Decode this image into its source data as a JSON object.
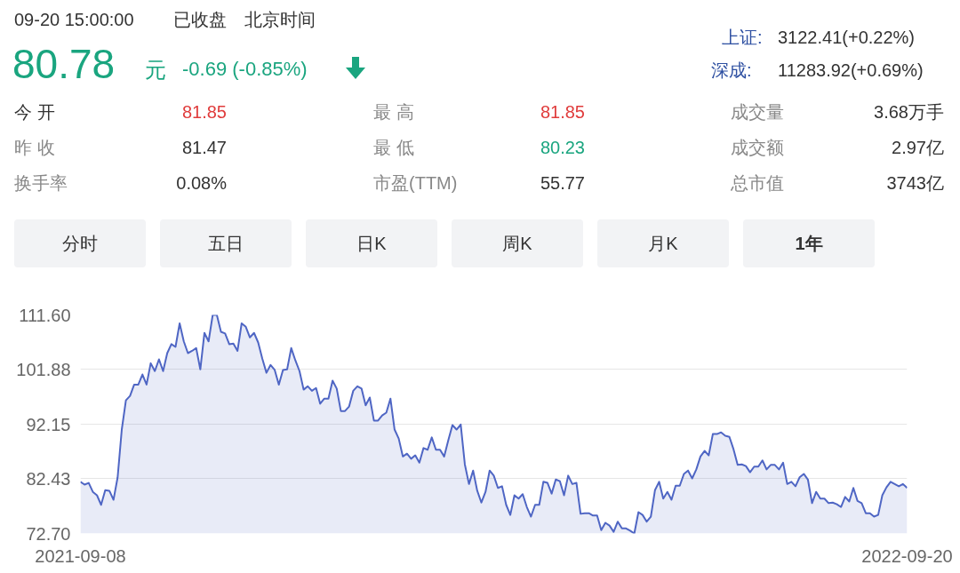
{
  "chart_data": {
    "type": "area",
    "annotations": [
      "09-20 15:00:00",
      "已收盘",
      "北京时间",
      "80.78",
      "元",
      "-0.69 (-0.85%)",
      "上证:",
      "3122.41(+0.22%)",
      "深成:",
      "11283.92(+0.69%)",
      "今 开",
      "81.85",
      "最 高",
      "81.85",
      "成交量",
      "3.68万手",
      "昨 收",
      "81.47",
      "最 低",
      "80.23",
      "成交额",
      "2.97亿",
      "换手率",
      "0.08%",
      "市盈(TTM)",
      "55.77",
      "总市值",
      "3743亿",
      "分时",
      "五日",
      "日K",
      "周K",
      "月K",
      "1年"
    ],
    "series": [
      {
        "color": "#4f66c4",
        "values": [
          81.9,
          81.4,
          81.7,
          80.1,
          79.5,
          77.8,
          80.4,
          80.3,
          78.7,
          82.7,
          91.2,
          96.4,
          97.2,
          99.2,
          99.2,
          101.0,
          99.2,
          103.0,
          101.6,
          103.7,
          101.6,
          104.8,
          106.4,
          105.9,
          110.1,
          106.9,
          104.8,
          105.2,
          105.7,
          101.9,
          108.4,
          106.9,
          111.6,
          111.6,
          108.6,
          108.3,
          106.4,
          106.5,
          105.2,
          110.1,
          109.5,
          107.6,
          108.4,
          106.7,
          103.8,
          101.3,
          102.7,
          101.8,
          99.2,
          101.8,
          101.9,
          105.7,
          103.5,
          101.6,
          98.3,
          98.9,
          98.1,
          98.6,
          95.8,
          96.7,
          96.7,
          99.9,
          98.5,
          94.5,
          94.5,
          95.3,
          98.1,
          98.9,
          98.5,
          95.5,
          96.9,
          92.8,
          92.8,
          93.7,
          94.2,
          96.7,
          91.2,
          89.6,
          86.4,
          86.9,
          86.0,
          86.6,
          85.3,
          87.9,
          87.6,
          89.8,
          87.6,
          87.6,
          86.4,
          89.3,
          92.0,
          91.2,
          92.1,
          85.0,
          81.5,
          83.9,
          80.3,
          78.2,
          80.1,
          83.9,
          83.0,
          80.8,
          81.1,
          77.8,
          76.0,
          79.5,
          78.9,
          79.7,
          77.4,
          75.7,
          77.8,
          77.8,
          81.9,
          81.7,
          79.8,
          82.3,
          82.0,
          79.5,
          83.0,
          81.5,
          81.7,
          76.2,
          76.3,
          76.3,
          75.9,
          75.9,
          73.3,
          74.6,
          74.1,
          73.0,
          74.8,
          73.6,
          73.6,
          73.2,
          72.7,
          76.5,
          76.0,
          74.8,
          75.7,
          80.4,
          81.9,
          78.9,
          80.1,
          78.7,
          81.2,
          81.2,
          83.3,
          83.9,
          82.5,
          84.1,
          86.4,
          87.4,
          86.6,
          90.4,
          90.4,
          90.7,
          90.1,
          89.9,
          87.7,
          84.9,
          85.0,
          84.7,
          83.6,
          84.6,
          84.6,
          85.7,
          84.1,
          84.9,
          84.9,
          84.1,
          85.3,
          81.5,
          81.9,
          81.1,
          82.7,
          83.3,
          82.3,
          78.1,
          80.1,
          78.9,
          78.9,
          78.1,
          78.2,
          77.9,
          77.4,
          79.2,
          78.4,
          80.8,
          78.5,
          78.1,
          76.3,
          76.3,
          75.7,
          76.0,
          79.5,
          80.9,
          81.9,
          81.5,
          81.1,
          81.5,
          80.8
        ]
      }
    ],
    "categories": [
      "2021-09-08",
      null,
      null,
      null,
      null,
      null,
      null,
      null,
      null,
      null,
      null,
      null,
      null,
      null,
      null,
      null,
      null,
      null,
      null,
      null,
      null,
      null,
      null,
      null,
      null,
      null,
      null,
      null,
      null,
      null,
      null,
      null,
      null,
      null,
      null,
      null,
      null,
      null,
      null,
      null,
      null,
      null,
      null,
      null,
      null,
      null,
      null,
      null,
      null,
      null,
      null,
      null,
      null,
      null,
      null,
      null,
      null,
      null,
      null,
      null,
      null,
      null,
      null,
      null,
      null,
      null,
      null,
      null,
      null,
      null,
      null,
      null,
      null,
      null,
      null,
      null,
      null,
      null,
      null,
      null,
      null,
      null,
      null,
      null,
      null,
      null,
      null,
      null,
      null,
      null,
      null,
      null,
      null,
      null,
      null,
      null,
      null,
      null,
      null,
      null,
      null,
      null,
      null,
      null,
      null,
      null,
      null,
      null,
      null,
      null,
      null,
      null,
      null,
      null,
      null,
      null,
      null,
      null,
      null,
      null,
      null,
      null,
      null,
      null,
      null,
      null,
      null,
      null,
      null,
      null,
      null,
      null,
      null,
      null,
      null,
      null,
      null,
      null,
      null,
      null,
      null,
      null,
      null,
      null,
      null,
      null,
      null,
      null,
      null,
      null,
      null,
      null,
      null,
      null,
      null,
      null,
      null,
      null,
      null,
      null,
      null,
      null,
      null,
      null,
      null,
      null,
      null,
      null,
      null,
      null,
      null,
      null,
      null,
      null,
      null,
      null,
      null,
      null,
      null,
      null,
      null,
      null,
      null,
      null,
      null,
      null,
      null,
      null,
      null,
      null,
      null,
      null,
      null,
      null,
      null,
      null,
      null,
      null,
      null,
      null,
      "2022-09-20"
    ],
    "ylim": [
      72.7,
      111.6
    ],
    "yticks": [
      {
        "value": 72.7,
        "label": "72.70"
      },
      {
        "value": 82.43,
        "label": "82.43"
      },
      {
        "value": 92.15,
        "label": "92.15"
      },
      {
        "value": 101.88,
        "label": "101.88"
      },
      {
        "value": 111.6,
        "label": "111.60"
      }
    ],
    "grid": "y"
  }
}
